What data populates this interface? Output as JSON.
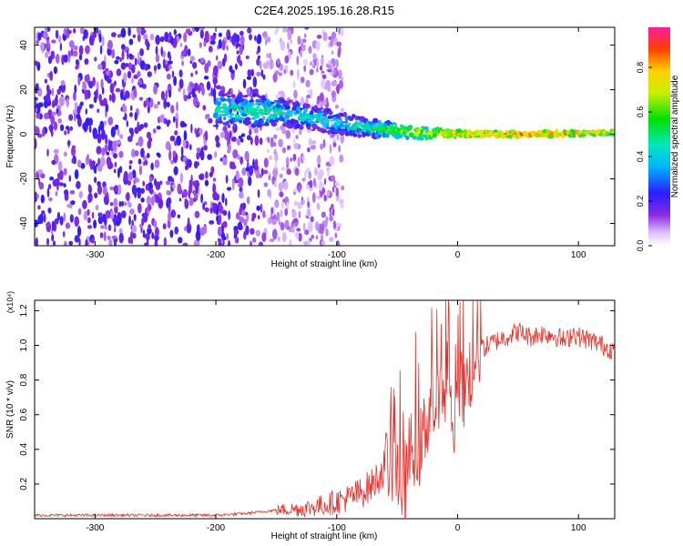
{
  "title": "C2E4.2025.195.16.28.R15",
  "colors": {
    "snr_line": "#e8302a",
    "spectrum_dots": "#7b2fe0",
    "axis": "#000000"
  },
  "chart_data": [
    {
      "type": "heatmap",
      "title": "C2E4.2025.195.16.28.R15",
      "xlabel": "Height of straight line (km)",
      "ylabel": "Frequency (Hz)",
      "xlim": [
        -350,
        130
      ],
      "ylim": [
        -50,
        48
      ],
      "x_ticks": [
        -300,
        -200,
        -100,
        0,
        100
      ],
      "x_tick_labels": [
        "-300",
        "-200",
        "-100",
        "0",
        "100"
      ],
      "y_ticks": [
        -40,
        -20,
        0,
        20,
        40
      ],
      "y_tick_labels": [
        "-40",
        "-20",
        "0",
        "20",
        "40"
      ],
      "colorbar": {
        "label": "Normalized spectral amplitude",
        "range": [
          0,
          0.98
        ],
        "ticks": [
          0.0,
          0.2,
          0.4,
          0.6,
          0.8
        ],
        "tick_labels": [
          "0.0",
          "0.2",
          "0.4",
          "0.6",
          "0.8"
        ],
        "colormap": "rainbow"
      },
      "ridge": {
        "x": [
          -195,
          -175,
          -150,
          -125,
          -100,
          -75,
          -50,
          -25,
          0,
          25,
          50,
          75,
          100,
          130
        ],
        "freq": [
          11,
          11,
          10,
          8,
          5,
          3,
          1.5,
          0.5,
          0.2,
          0.1,
          0.1,
          0.2,
          0.5,
          1
        ],
        "amplitude": [
          0.5,
          0.5,
          0.5,
          0.45,
          0.45,
          0.5,
          0.65,
          0.75,
          0.8,
          0.85,
          0.85,
          0.85,
          0.8,
          0.75
        ]
      },
      "noise_region": [
        -350,
        -125
      ]
    },
    {
      "type": "line",
      "title": "",
      "xlabel": "Height of straight line (km)",
      "ylabel": "SNR (10 * v/v)",
      "scale_label": "(x10⁴)",
      "xlim": [
        -350,
        130
      ],
      "ylim": [
        0,
        1.26
      ],
      "x_ticks": [
        -300,
        -200,
        -100,
        0,
        100
      ],
      "x_tick_labels": [
        "-300",
        "-200",
        "-100",
        "0",
        "100"
      ],
      "y_ticks": [
        0.2,
        0.4,
        0.6,
        0.8,
        1.0,
        1.2
      ],
      "y_tick_labels": [
        "0.2",
        "0.4",
        "0.6",
        "0.8",
        "1.0",
        "1.2"
      ],
      "series": [
        {
          "x": [
            -350,
            -300,
            -250,
            -200,
            -175,
            -150,
            -125,
            -110,
            -100,
            -90,
            -80,
            -70,
            -60,
            -55,
            -50,
            -45,
            -40,
            -35,
            -30,
            -25,
            -20,
            -15,
            -10,
            -5,
            0,
            5,
            10,
            15,
            20,
            25,
            30,
            40,
            50,
            60,
            70,
            80,
            90,
            95,
            100,
            110,
            120,
            130
          ],
          "y": [
            0.02,
            0.02,
            0.02,
            0.02,
            0.03,
            0.05,
            0.06,
            0.08,
            0.1,
            0.12,
            0.15,
            0.2,
            0.3,
            0.35,
            0.28,
            0.15,
            0.35,
            0.45,
            0.4,
            0.6,
            0.7,
            0.65,
            0.75,
            0.6,
            0.55,
            0.7,
            0.85,
            0.95,
            0.98,
            1.0,
            1.02,
            1.05,
            1.08,
            1.05,
            1.07,
            1.06,
            1.02,
            1.08,
            1.05,
            1.03,
            1.0,
            0.97
          ]
        }
      ]
    }
  ]
}
